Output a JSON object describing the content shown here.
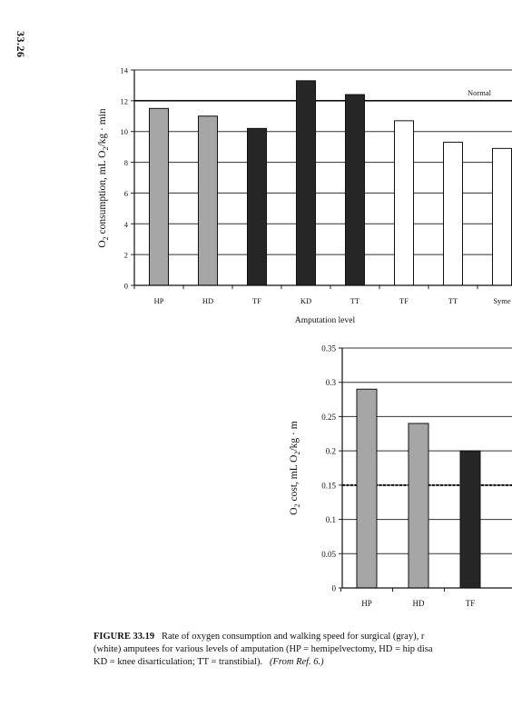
{
  "page": {
    "page_number": "33.26"
  },
  "caption": {
    "figure_label": "FIGURE 33.19",
    "line1": "Rate of oxygen consumption and walking speed for surgical (gray), r",
    "line2": "(white) amputees for various levels of amputation (HP = hemipelvectomy, HD = hip disa",
    "line3_main": "KD = knee disarticulation; TT = transtibial).",
    "line3_ref": "(From Ref. 6.)"
  },
  "chart_data": [
    {
      "type": "bar",
      "categories": [
        "HP",
        "HD",
        "TF",
        "KD",
        "TT",
        "TF",
        "TT",
        "Syme"
      ],
      "values": [
        11.5,
        11.0,
        10.2,
        13.3,
        12.4,
        10.7,
        9.3,
        8.9
      ],
      "colors": [
        "#a6a6a6",
        "#a6a6a6",
        "#262626",
        "#262626",
        "#262626",
        "#ffffff",
        "#ffffff",
        "#ffffff"
      ],
      "ylabel": "O2 consumption, mL O2/kg · min",
      "xlabel": "Amputation level",
      "ylim": [
        0,
        14
      ],
      "yticks": [
        "0",
        "2",
        "4",
        "6",
        "8",
        "10",
        "12",
        "14"
      ],
      "reference_line": {
        "value": 12,
        "label": "Normal"
      },
      "grid": true
    },
    {
      "type": "bar",
      "categories": [
        "HP",
        "HD",
        "TF"
      ],
      "values": [
        0.29,
        0.24,
        0.2
      ],
      "colors": [
        "#a6a6a6",
        "#a6a6a6",
        "#262626"
      ],
      "ylabel": "O2 cost, mL O2/kg · m",
      "ylim": [
        0,
        0.35
      ],
      "yticks": [
        "0",
        "0.05",
        "0.1",
        "0.15",
        "0.2",
        "0.25",
        "0.3",
        "0.35"
      ],
      "reference_line": {
        "value": 0.15,
        "label": ""
      },
      "grid": true
    }
  ]
}
